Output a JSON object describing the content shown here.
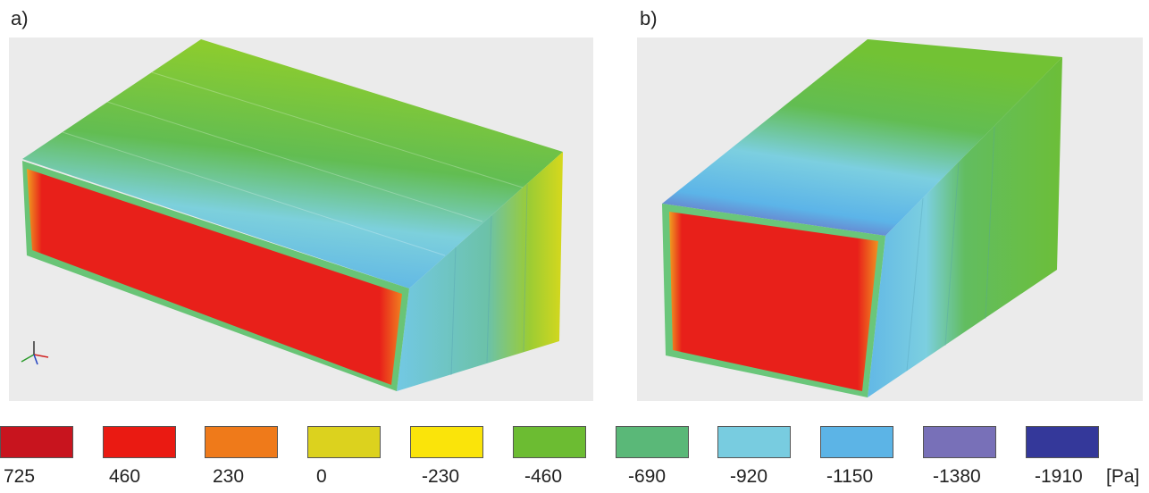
{
  "panels": [
    {
      "label": "a)"
    },
    {
      "label": "b)"
    }
  ],
  "legend": {
    "unit": "[Pa]",
    "items": [
      {
        "value": "725",
        "color": "#c8141e"
      },
      {
        "value": "460",
        "color": "#ea1a12"
      },
      {
        "value": "230",
        "color": "#ef7a1a"
      },
      {
        "value": "0",
        "color": "#dcd21e"
      },
      {
        "value": "-230",
        "color": "#fae40a"
      },
      {
        "value": "-460",
        "color": "#6cbc32"
      },
      {
        "value": "-690",
        "color": "#5ab878"
      },
      {
        "value": "-920",
        "color": "#78cce0"
      },
      {
        "value": "-1150",
        "color": "#5cb4e6"
      },
      {
        "value": "-1380",
        "color": "#7870b8"
      },
      {
        "value": "-1910",
        "color": "#34389a"
      }
    ]
  }
}
